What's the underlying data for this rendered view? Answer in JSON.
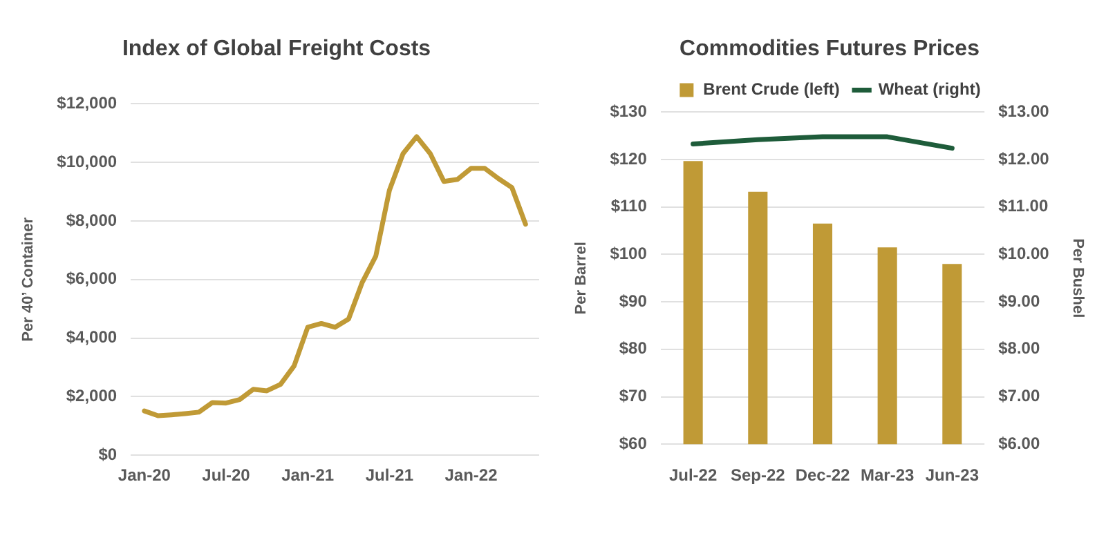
{
  "chart_data": [
    {
      "type": "line",
      "title": "Index of Global Freight Costs",
      "ylabel": "Per 40’ Container",
      "x": [
        "2020-01",
        "2020-02",
        "2020-03",
        "2020-04",
        "2020-05",
        "2020-06",
        "2020-07",
        "2020-08",
        "2020-09",
        "2020-10",
        "2020-11",
        "2020-12",
        "2021-01",
        "2021-02",
        "2021-03",
        "2021-04",
        "2021-05",
        "2021-06",
        "2021-07",
        "2021-08",
        "2021-09",
        "2021-10",
        "2021-11",
        "2021-12",
        "2022-01",
        "2022-02",
        "2022-03",
        "2022-04",
        "2022-05"
      ],
      "series": [
        {
          "color": "#c09a36",
          "values": [
            1510,
            1350,
            1380,
            1420,
            1470,
            1800,
            1780,
            1900,
            2250,
            2200,
            2420,
            3050,
            4370,
            4500,
            4370,
            4650,
            5900,
            6800,
            9050,
            10300,
            10880,
            10300,
            9350,
            9420,
            9800,
            9800,
            9450,
            9140,
            7890
          ]
        }
      ],
      "xlim": [
        "2019-12",
        "2022-06"
      ],
      "xticks": [
        {
          "value": "2020-01",
          "label": "Jan-20"
        },
        {
          "value": "2020-07",
          "label": "Jul-20"
        },
        {
          "value": "2021-01",
          "label": "Jan-21"
        },
        {
          "value": "2021-07",
          "label": "Jul-21"
        },
        {
          "value": "2022-01",
          "label": "Jan-22"
        }
      ],
      "ylim": [
        0,
        12000
      ],
      "yticks": [
        {
          "value": 0,
          "label": "$0"
        },
        {
          "value": 2000,
          "label": "$2,000"
        },
        {
          "value": 4000,
          "label": "$4,000"
        },
        {
          "value": 6000,
          "label": "$6,000"
        },
        {
          "value": 8000,
          "label": "$8,000"
        },
        {
          "value": 10000,
          "label": "$10,000"
        },
        {
          "value": 12000,
          "label": "$12,000"
        }
      ],
      "grid": "y",
      "legend": false,
      "marker": "none",
      "line_style": "solid"
    },
    {
      "type": "bar",
      "title": "Commodities Futures Prices",
      "ylabel": "Per Barrel",
      "y2label": "Per Bushel",
      "categories": [
        "Jul-22",
        "Sep-22",
        "Dec-22",
        "Mar-23",
        "Jun-23"
      ],
      "series": [
        {
          "name": "Brent Crude (left)",
          "type": "bar",
          "color": "#c09a36",
          "values": [
            119.7,
            113.2,
            106.5,
            101.5,
            98.0
          ]
        },
        {
          "name": "Wheat (right)",
          "type": "line",
          "axis": "y2",
          "color": "#1e5c3a",
          "values": [
            12.33,
            12.42,
            12.48,
            12.48,
            12.24
          ]
        }
      ],
      "ylim": [
        60,
        130
      ],
      "yticks": [
        {
          "value": 60,
          "label": "$60"
        },
        {
          "value": 70,
          "label": "$70"
        },
        {
          "value": 80,
          "label": "$80"
        },
        {
          "value": 90,
          "label": "$90"
        },
        {
          "value": 100,
          "label": "$100"
        },
        {
          "value": 110,
          "label": "$110"
        },
        {
          "value": 120,
          "label": "$120"
        },
        {
          "value": 130,
          "label": "$130"
        }
      ],
      "y2lim": [
        6,
        13
      ],
      "y2ticks": [
        {
          "value": 6,
          "label": "$6.00"
        },
        {
          "value": 7,
          "label": "$7.00"
        },
        {
          "value": 8,
          "label": "$8.00"
        },
        {
          "value": 9,
          "label": "$9.00"
        },
        {
          "value": 10,
          "label": "$10.00"
        },
        {
          "value": 11,
          "label": "$11.00"
        },
        {
          "value": 12,
          "label": "$12.00"
        },
        {
          "value": 13,
          "label": "$13.00"
        }
      ],
      "grid": "y",
      "legend": "top",
      "marker": "none",
      "line_style": "solid"
    }
  ]
}
